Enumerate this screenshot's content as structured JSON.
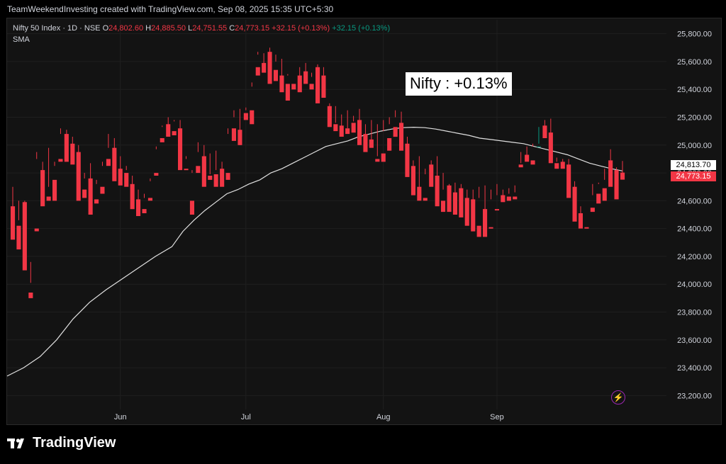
{
  "credit_text": "TeamWeekendInvesting created with TradingView.com, Sep 08, 2025 15:35 UTC+5:30",
  "legend": {
    "symbol": "Nifty 50 Index · 1D · NSE",
    "o_label": "O",
    "o_value": "24,802.60",
    "h_label": "H",
    "h_value": "24,885.50",
    "l_label": "L",
    "l_value": "24,751.55",
    "c_label": "C",
    "c_value": "24,773.15",
    "change": "+32.15 (+0.13%)",
    "change2": "+32.15 (+0.13%)",
    "indicator": "SMA"
  },
  "annotation": "Nifty : +0.13%",
  "sma_tag": "24,813.70",
  "price_tag": "24,773.15",
  "brand": "TradingView",
  "colors": {
    "up": "#089981",
    "down": "#f23645",
    "sma": "#e0e0e0",
    "grid": "#1f1f1f",
    "bg": "#131313"
  },
  "icons": {
    "logo": "tradingview-logo-icon",
    "bolt": "lightning-icon"
  },
  "chart_data": {
    "type": "candlestick",
    "ylim": [
      23100,
      25900
    ],
    "y_ticks": [
      23200,
      23400,
      23600,
      23800,
      24000,
      24200,
      24400,
      24600,
      24800,
      25000,
      25200,
      25400,
      25600,
      25800
    ],
    "y_tick_labels": [
      "23,200.00",
      "23,400.00",
      "23,600.00",
      "23,800.00",
      "24,000.00",
      "24,200.00",
      "24,400.00",
      "24,600.00",
      "24,800.00",
      "25,000.00",
      "25,200.00",
      "25,400.00",
      "25,600.00",
      "25,800.00"
    ],
    "x_ticks": [
      {
        "label": "Jun",
        "index": 18
      },
      {
        "label": "Jul",
        "index": 39
      },
      {
        "label": "Aug",
        "index": 62
      },
      {
        "label": "Sep",
        "index": 81
      }
    ],
    "candles": [
      [
        24560,
        24700,
        24420,
        24320
      ],
      [
        24420,
        24600,
        24460,
        24250
      ],
      [
        24590,
        24600,
        24150,
        24100
      ],
      [
        23940,
        24160,
        24010,
        23900
      ],
      [
        24400,
        24950,
        24900,
        24380
      ],
      [
        24820,
        24880,
        24630,
        24560
      ],
      [
        24630,
        24980,
        24700,
        24600
      ],
      [
        24750,
        24850,
        24880,
        24600
      ],
      [
        24900,
        25120,
        25080,
        24880
      ],
      [
        25080,
        25110,
        25020,
        24880
      ],
      [
        25010,
        25060,
        24930,
        24860
      ],
      [
        24950,
        25000,
        24660,
        24600
      ],
      [
        24680,
        24800,
        24760,
        24620
      ],
      [
        24760,
        24870,
        24600,
        24500
      ],
      [
        24610,
        24750,
        24720,
        24580
      ],
      [
        24700,
        24880,
        24850,
        24650
      ],
      [
        24900,
        25080,
        24980,
        24850
      ],
      [
        24980,
        25050,
        24830,
        24740
      ],
      [
        24830,
        24920,
        24800,
        24710
      ],
      [
        24800,
        24850,
        24820,
        24700
      ],
      [
        24720,
        24780,
        24620,
        24540
      ],
      [
        24610,
        24680,
        24520,
        24490
      ],
      [
        24540,
        24650,
        24620,
        24510
      ],
      [
        24620,
        24740,
        24760,
        24600
      ],
      [
        24800,
        24970,
        24990,
        24780
      ],
      [
        25050,
        25140,
        25130,
        25020
      ],
      [
        25150,
        25200,
        25100,
        25060
      ],
      [
        25100,
        25180,
        25170,
        25070
      ],
      [
        25120,
        25180,
        24850,
        24820
      ],
      [
        24830,
        24920,
        24900,
        24820
      ],
      [
        24600,
        24800,
        24820,
        24500
      ],
      [
        24850,
        25020,
        24950,
        24800
      ],
      [
        24920,
        25000,
        24780,
        24700
      ],
      [
        24780,
        24940,
        24790,
        24750
      ],
      [
        24790,
        24960,
        24820,
        24700
      ],
      [
        24830,
        24880,
        24820,
        24700
      ],
      [
        24800,
        25080,
        25120,
        24750
      ],
      [
        25120,
        25250,
        25200,
        25030
      ],
      [
        25110,
        25260,
        25000,
        25000
      ],
      [
        25230,
        25250,
        25270,
        25180
      ],
      [
        25250,
        25450,
        25420,
        25150
      ],
      [
        25560,
        25670,
        25650,
        25500
      ],
      [
        25590,
        25660,
        25550,
        25520
      ],
      [
        25670,
        25700,
        25540,
        25440
      ],
      [
        25540,
        25650,
        25600,
        25460
      ],
      [
        25500,
        25620,
        25400,
        25380
      ],
      [
        25440,
        25510,
        25500,
        25320
      ],
      [
        25440,
        25500,
        25500,
        25400
      ],
      [
        25500,
        25560,
        25480,
        25380
      ],
      [
        25530,
        25590,
        25500,
        25440
      ],
      [
        25440,
        25520,
        25490,
        25400
      ],
      [
        25560,
        25580,
        25420,
        25300
      ],
      [
        25500,
        25560,
        25500,
        25340
      ],
      [
        25280,
        25300,
        25150,
        25130
      ],
      [
        25150,
        25280,
        25160,
        25100
      ],
      [
        25140,
        25220,
        25100,
        25060
      ],
      [
        25120,
        25250,
        25120,
        25080
      ],
      [
        25160,
        25210,
        25170,
        25090
      ],
      [
        25180,
        25260,
        25080,
        25000
      ],
      [
        25080,
        25150,
        25010,
        24950
      ],
      [
        25040,
        25180,
        24990,
        24980
      ],
      [
        24900,
        25150,
        24920,
        24880
      ],
      [
        24940,
        25180,
        25100,
        24880
      ],
      [
        25050,
        25200,
        25150,
        24960
      ],
      [
        25130,
        25250,
        25200,
        25060
      ],
      [
        25160,
        25240,
        25030,
        24960
      ],
      [
        25010,
        25060,
        24860,
        24770
      ],
      [
        24850,
        24890,
        24680,
        24640
      ],
      [
        24700,
        24920,
        24620,
        24600
      ],
      [
        24620,
        24790,
        24830,
        24600
      ],
      [
        24860,
        24890,
        24820,
        24700
      ],
      [
        24780,
        24920,
        24620,
        24560
      ],
      [
        24600,
        24800,
        24680,
        24520
      ],
      [
        24710,
        24720,
        24560,
        24520
      ],
      [
        24660,
        24730,
        24620,
        24500
      ],
      [
        24690,
        24720,
        24600,
        24480
      ],
      [
        24620,
        24680,
        24600,
        24420
      ],
      [
        24610,
        24680,
        24480,
        24380
      ],
      [
        24420,
        24700,
        24620,
        24340
      ],
      [
        24540,
        24710,
        24410,
        24340
      ],
      [
        24410,
        24680,
        24610,
        24400
      ],
      [
        24540,
        24720,
        24640,
        24530
      ],
      [
        24640,
        24680,
        24630,
        24590
      ],
      [
        24630,
        24690,
        24650,
        24600
      ],
      [
        24630,
        24710,
        24660,
        24610
      ],
      [
        24860,
        24950,
        24870,
        24840
      ],
      [
        24930,
        24990,
        24890,
        24880
      ],
      [
        24890,
        25010,
        24990,
        24860
      ],
      [
        24990,
        25130,
        25010,
        24990
      ],
      [
        25140,
        25180,
        25080,
        25050
      ],
      [
        25090,
        25190,
        24960,
        24870
      ],
      [
        24870,
        24910,
        24880,
        24830
      ],
      [
        24880,
        24900,
        24860,
        24830
      ],
      [
        24860,
        24900,
        24690,
        24620
      ],
      [
        24700,
        24740,
        24510,
        24450
      ],
      [
        24510,
        24560,
        24410,
        24400
      ],
      [
        24410,
        24620,
        24620,
        24400
      ],
      [
        24550,
        24720,
        24640,
        24520
      ],
      [
        24650,
        24720,
        24730,
        24580
      ],
      [
        24690,
        24830,
        24750,
        24600
      ],
      [
        24890,
        24970,
        24740,
        24700
      ],
      [
        24820,
        24840,
        24770,
        24610
      ],
      [
        24802.6,
        24885.5,
        24773.15,
        24751.55
      ]
    ],
    "sma": [
      [
        0,
        23340
      ],
      [
        3,
        23400
      ],
      [
        6,
        23480
      ],
      [
        9,
        23600
      ],
      [
        12,
        23750
      ],
      [
        15,
        23870
      ],
      [
        18,
        23960
      ],
      [
        21,
        24040
      ],
      [
        24,
        24120
      ],
      [
        27,
        24200
      ],
      [
        30,
        24270
      ],
      [
        32,
        24380
      ],
      [
        34,
        24460
      ],
      [
        36,
        24530
      ],
      [
        38,
        24590
      ],
      [
        40,
        24650
      ],
      [
        42,
        24680
      ],
      [
        44,
        24720
      ],
      [
        46,
        24750
      ],
      [
        48,
        24800
      ],
      [
        50,
        24830
      ],
      [
        52,
        24870
      ],
      [
        54,
        24910
      ],
      [
        56,
        24950
      ],
      [
        58,
        24990
      ],
      [
        60,
        25010
      ],
      [
        62,
        25030
      ],
      [
        64,
        25060
      ],
      [
        66,
        25080
      ],
      [
        68,
        25100
      ],
      [
        70,
        25115
      ],
      [
        72,
        25125
      ],
      [
        74,
        25128
      ],
      [
        76,
        25125
      ],
      [
        78,
        25115
      ],
      [
        80,
        25100
      ],
      [
        82,
        25085
      ],
      [
        84,
        25070
      ],
      [
        86,
        25050
      ],
      [
        88,
        25040
      ],
      [
        90,
        25030
      ],
      [
        92,
        25020
      ],
      [
        94,
        25010
      ],
      [
        96,
        24990
      ],
      [
        98,
        24970
      ],
      [
        100,
        24950
      ],
      [
        102,
        24930
      ],
      [
        104,
        24900
      ],
      [
        106,
        24870
      ],
      [
        108,
        24850
      ],
      [
        110,
        24830
      ],
      [
        112,
        24814
      ]
    ]
  }
}
